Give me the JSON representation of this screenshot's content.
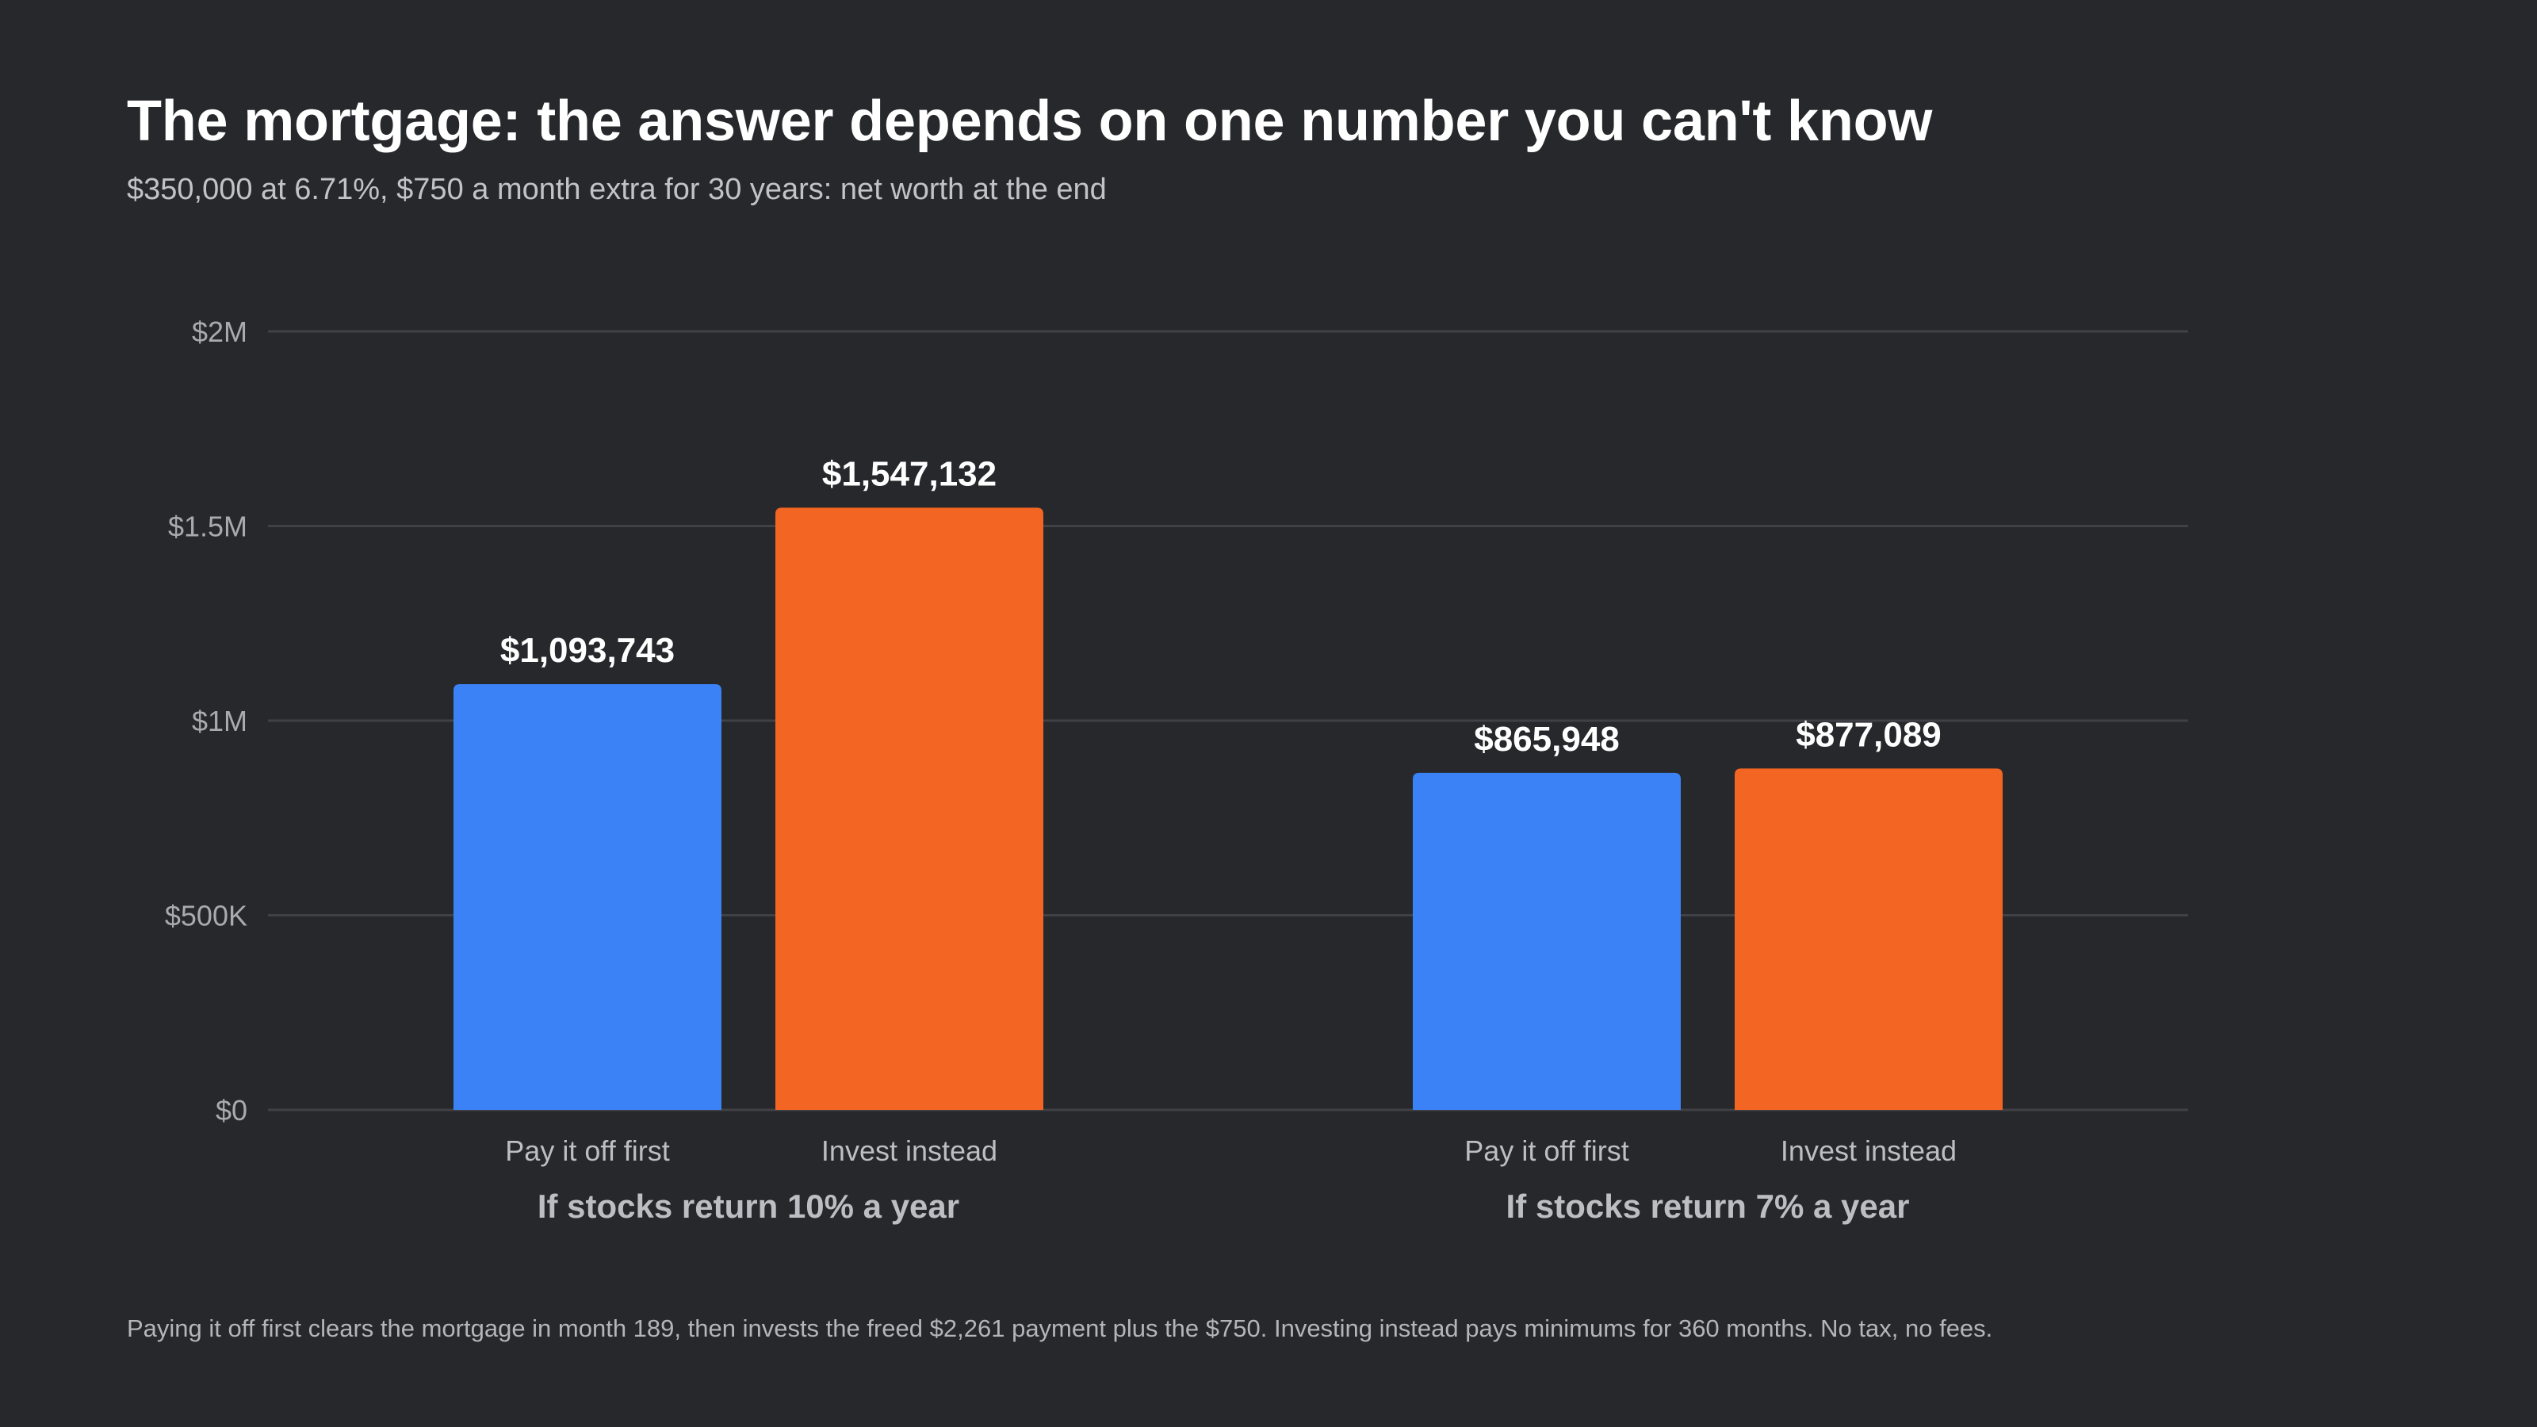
{
  "header": {
    "title": "The mortgage: the answer depends on one number you can't know",
    "subtitle": "$350,000 at 6.71%, $750 a month extra for 30 years: net worth at the end"
  },
  "footnote": "Paying it off first clears the mortgage in month 189, then invests the freed $2,261 payment plus the $750. Investing instead pays minimums for 360 months. No tax, no fees.",
  "chart_data": {
    "type": "bar",
    "ylim": [
      0,
      2000000
    ],
    "y_ticks": [
      {
        "value": 0,
        "label": "$0"
      },
      {
        "value": 500000,
        "label": "$500K"
      },
      {
        "value": 1000000,
        "label": "$1M"
      },
      {
        "value": 1500000,
        "label": "$1.5M"
      },
      {
        "value": 2000000,
        "label": "$2M"
      }
    ],
    "grid": true,
    "colors": {
      "Pay it off first": "#3b82f6",
      "Invest instead": "#f26522"
    },
    "groups": [
      {
        "label": "If stocks return 10% a year",
        "bars": [
          {
            "category": "Pay it off first",
            "value": 1093743,
            "label": "$1,093,743"
          },
          {
            "category": "Invest instead",
            "value": 1547132,
            "label": "$1,547,132"
          }
        ]
      },
      {
        "label": "If stocks return 7% a year",
        "bars": [
          {
            "category": "Pay it off first",
            "value": 865948,
            "label": "$865,948"
          },
          {
            "category": "Invest instead",
            "value": 877089,
            "label": "$877,089"
          }
        ]
      }
    ]
  }
}
